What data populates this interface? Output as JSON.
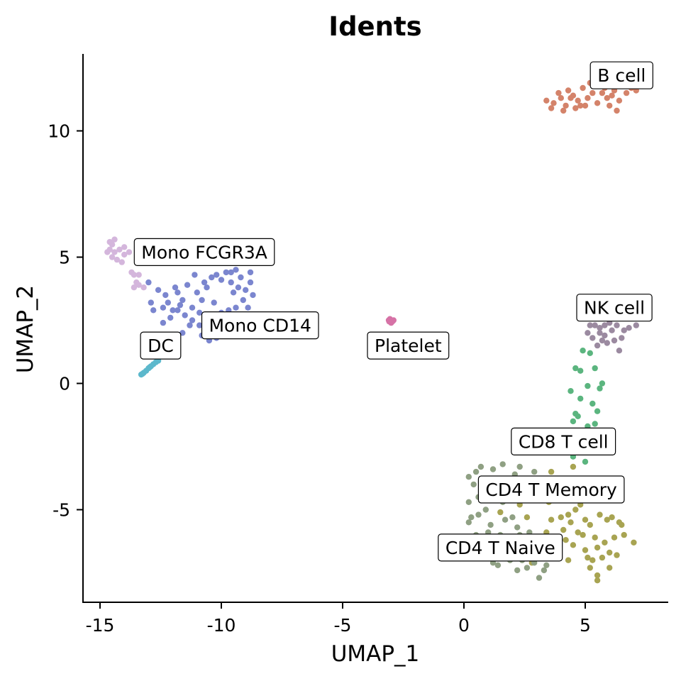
{
  "chart_data": {
    "type": "scatter",
    "title": "Idents",
    "xlabel": "UMAP_1",
    "ylabel": "UMAP_2",
    "xlim": [
      -15.5,
      8.5
    ],
    "ylim": [
      -8.6,
      13
    ],
    "xticks": [
      -15,
      -10,
      -5,
      0,
      5
    ],
    "xtick_labels": [
      "-15",
      "-10",
      "-5",
      "0",
      "5"
    ],
    "yticks": [
      -5,
      0,
      5,
      10
    ],
    "ytick_labels": [
      "-5",
      "0",
      "5",
      "10"
    ],
    "grid": false,
    "legend": "none",
    "series": [
      {
        "name": "B cell",
        "color": "#d4836a",
        "points": [
          [
            3.4,
            11.2
          ],
          [
            3.7,
            11.1
          ],
          [
            4.0,
            11.3
          ],
          [
            4.2,
            11.0
          ],
          [
            4.5,
            11.4
          ],
          [
            4.3,
            11.6
          ],
          [
            4.7,
            11.2
          ],
          [
            4.9,
            11.7
          ],
          [
            5.1,
            11.3
          ],
          [
            4.6,
            10.9
          ],
          [
            5.3,
            11.5
          ],
          [
            5.6,
            11.8
          ],
          [
            5.9,
            11.3
          ],
          [
            6.2,
            11.6
          ],
          [
            6.0,
            11.0
          ],
          [
            6.4,
            11.2
          ],
          [
            6.7,
            11.5
          ],
          [
            6.9,
            11.7
          ],
          [
            7.1,
            11.6
          ],
          [
            5.5,
            11.1
          ],
          [
            4.1,
            10.8
          ],
          [
            3.9,
            11.5
          ],
          [
            4.8,
            11.0
          ],
          [
            5.2,
            11.9
          ],
          [
            5.8,
            11.7
          ],
          [
            6.5,
            11.8
          ],
          [
            6.3,
            10.8
          ],
          [
            4.4,
            11.3
          ],
          [
            5.0,
            11.0
          ],
          [
            3.6,
            10.9
          ],
          [
            6.1,
            11.4
          ],
          [
            5.7,
            11.5
          ]
        ]
      },
      {
        "name": "NK cell",
        "color": "#9b8aa0",
        "points": [
          [
            5.1,
            2.0
          ],
          [
            5.3,
            1.8
          ],
          [
            5.6,
            2.2
          ],
          [
            5.8,
            1.9
          ],
          [
            6.1,
            2.1
          ],
          [
            6.3,
            2.3
          ],
          [
            6.5,
            1.8
          ],
          [
            6.8,
            2.2
          ],
          [
            7.1,
            2.3
          ],
          [
            5.9,
            1.6
          ],
          [
            5.4,
            2.3
          ],
          [
            6.0,
            2.4
          ],
          [
            5.7,
            1.7
          ],
          [
            6.2,
            1.7
          ],
          [
            5.5,
            1.5
          ],
          [
            6.4,
            1.3
          ],
          [
            5.2,
            2.3
          ],
          [
            6.6,
            2.1
          ],
          [
            5.8,
            2.3
          ],
          [
            5.6,
            2.0
          ]
        ]
      },
      {
        "name": "CD8 T cell",
        "color": "#5bb57f",
        "points": [
          [
            4.9,
            1.3
          ],
          [
            5.2,
            1.2
          ],
          [
            4.8,
            0.5
          ],
          [
            5.4,
            0.6
          ],
          [
            5.1,
            -0.1
          ],
          [
            5.6,
            -0.2
          ],
          [
            4.4,
            -0.3
          ],
          [
            4.8,
            -0.6
          ],
          [
            5.3,
            -0.8
          ],
          [
            4.6,
            -1.2
          ],
          [
            5.5,
            -1.1
          ],
          [
            4.7,
            -1.3
          ],
          [
            5.1,
            -1.7
          ],
          [
            5.4,
            -1.6
          ],
          [
            4.8,
            -1.9
          ],
          [
            5.3,
            -2.2
          ],
          [
            5.0,
            -2.5
          ],
          [
            4.5,
            -2.9
          ],
          [
            5.0,
            -3.1
          ],
          [
            4.6,
            0.6
          ],
          [
            5.7,
            0.0
          ],
          [
            4.5,
            -1.5
          ]
        ]
      },
      {
        "name": "CD4 T Memory",
        "color": "#a8a452",
        "points": [
          [
            3.6,
            -3.5
          ],
          [
            4.5,
            -3.3
          ],
          [
            5.0,
            -3.9
          ],
          [
            5.2,
            -4.5
          ],
          [
            4.8,
            -4.8
          ],
          [
            3.8,
            -4.4
          ],
          [
            4.3,
            -5.2
          ],
          [
            4.0,
            -5.3
          ],
          [
            4.6,
            -5.0
          ],
          [
            5.0,
            -5.4
          ],
          [
            5.2,
            -5.6
          ],
          [
            5.6,
            -5.2
          ],
          [
            5.9,
            -5.4
          ],
          [
            6.1,
            -5.3
          ],
          [
            6.4,
            -5.5
          ],
          [
            6.6,
            -6.0
          ],
          [
            5.4,
            -6.1
          ],
          [
            5.8,
            -6.3
          ],
          [
            6.2,
            -6.1
          ],
          [
            5.5,
            -6.5
          ],
          [
            5.1,
            -6.9
          ],
          [
            5.7,
            -6.9
          ],
          [
            6.0,
            -7.3
          ],
          [
            5.5,
            -7.6
          ],
          [
            5.5,
            -7.8
          ],
          [
            5.2,
            -7.3
          ],
          [
            4.4,
            -5.5
          ],
          [
            4.1,
            -5.8
          ],
          [
            3.6,
            -5.4
          ],
          [
            3.4,
            -5.9
          ],
          [
            3.2,
            -6.1
          ],
          [
            2.7,
            -6.2
          ],
          [
            2.6,
            -5.3
          ],
          [
            2.3,
            -4.8
          ],
          [
            1.5,
            -5.1
          ],
          [
            2.8,
            -7.1
          ],
          [
            3.1,
            -6.8
          ],
          [
            3.8,
            -6.6
          ],
          [
            4.3,
            -7.0
          ],
          [
            4.5,
            -6.4
          ],
          [
            4.9,
            -6.0
          ],
          [
            6.5,
            -5.6
          ],
          [
            7.0,
            -6.3
          ],
          [
            6.3,
            -6.8
          ],
          [
            5.3,
            -7.0
          ],
          [
            4.2,
            -6.2
          ],
          [
            3.5,
            -4.7
          ],
          [
            4.7,
            -5.9
          ],
          [
            5.0,
            -6.6
          ],
          [
            6.0,
            -6.7
          ]
        ]
      },
      {
        "name": "CD4 T Naive",
        "color": "#8fa083",
        "points": [
          [
            0.5,
            -3.5
          ],
          [
            0.7,
            -3.3
          ],
          [
            0.2,
            -3.7
          ],
          [
            1.2,
            -3.4
          ],
          [
            1.6,
            -3.2
          ],
          [
            2.3,
            -3.3
          ],
          [
            2.9,
            -3.5
          ],
          [
            0.4,
            -4.0
          ],
          [
            1.0,
            -4.3
          ],
          [
            1.9,
            -4.0
          ],
          [
            2.6,
            -4.4
          ],
          [
            0.6,
            -4.5
          ],
          [
            0.2,
            -4.7
          ],
          [
            0.9,
            -5.0
          ],
          [
            0.3,
            -5.3
          ],
          [
            1.1,
            -5.6
          ],
          [
            1.7,
            -5.4
          ],
          [
            2.2,
            -5.7
          ],
          [
            2.0,
            -5.3
          ],
          [
            0.2,
            -5.5
          ],
          [
            0.5,
            -6.0
          ],
          [
            0.9,
            -6.3
          ],
          [
            1.5,
            -6.0
          ],
          [
            1.3,
            -6.5
          ],
          [
            2.0,
            -6.2
          ],
          [
            2.5,
            -6.5
          ],
          [
            2.7,
            -6.8
          ],
          [
            1.8,
            -6.9
          ],
          [
            1.4,
            -7.2
          ],
          [
            2.2,
            -7.4
          ],
          [
            2.9,
            -7.1
          ],
          [
            3.1,
            -7.7
          ],
          [
            3.4,
            -7.2
          ],
          [
            3.7,
            -6.9
          ],
          [
            1.9,
            -7.0
          ],
          [
            2.4,
            -7.0
          ],
          [
            0.3,
            -6.6
          ],
          [
            0.8,
            -6.8
          ],
          [
            1.2,
            -7.1
          ],
          [
            2.6,
            -7.3
          ],
          [
            3.0,
            -6.3
          ],
          [
            1.6,
            -4.7
          ],
          [
            0.8,
            -3.8
          ],
          [
            1.4,
            -3.9
          ],
          [
            2.1,
            -3.6
          ],
          [
            1.1,
            -4.0
          ],
          [
            2.7,
            -5.9
          ],
          [
            1.0,
            -5.9
          ],
          [
            0.6,
            -5.2
          ],
          [
            2.3,
            -6.0
          ],
          [
            1.5,
            -6.6
          ],
          [
            3.2,
            -6.5
          ],
          [
            3.3,
            -7.4
          ]
        ]
      },
      {
        "name": "Platelet",
        "color": "#d672a6",
        "points": [
          [
            -3.1,
            2.5
          ],
          [
            -3.0,
            2.5
          ],
          [
            -2.95,
            2.45
          ],
          [
            -3.05,
            2.55
          ],
          [
            -2.9,
            2.5
          ],
          [
            -3.0,
            2.4
          ],
          [
            -3.08,
            2.45
          ]
        ]
      },
      {
        "name": "Mono FCGR3A",
        "color": "#d4b6dc",
        "points": [
          [
            -14.6,
            5.6
          ],
          [
            -14.5,
            5.5
          ],
          [
            -14.4,
            5.7
          ],
          [
            -14.6,
            5.3
          ],
          [
            -14.4,
            5.2
          ],
          [
            -14.7,
            5.2
          ],
          [
            -14.2,
            5.3
          ],
          [
            -14.0,
            5.1
          ],
          [
            -13.8,
            5.2
          ],
          [
            -14.3,
            4.9
          ],
          [
            -14.1,
            4.8
          ],
          [
            -14.5,
            5.0
          ],
          [
            -13.6,
            4.3
          ],
          [
            -13.4,
            4.3
          ],
          [
            -13.5,
            4.0
          ],
          [
            -13.2,
            3.8
          ],
          [
            -13.4,
            3.9
          ],
          [
            -13.7,
            4.4
          ],
          [
            -13.6,
            3.8
          ],
          [
            -14.0,
            5.4
          ]
        ]
      },
      {
        "name": "Mono CD14",
        "color": "#7b86cf",
        "points": [
          [
            -13.0,
            4.0
          ],
          [
            -12.6,
            3.7
          ],
          [
            -12.3,
            3.5
          ],
          [
            -12.2,
            3.2
          ],
          [
            -11.8,
            3.6
          ],
          [
            -11.6,
            3.3
          ],
          [
            -11.4,
            3.9
          ],
          [
            -11.2,
            3.0
          ],
          [
            -11.0,
            3.6
          ],
          [
            -10.8,
            3.3
          ],
          [
            -10.6,
            3.8
          ],
          [
            -10.4,
            4.2
          ],
          [
            -10.2,
            4.3
          ],
          [
            -10.0,
            4.1
          ],
          [
            -9.8,
            4.4
          ],
          [
            -9.6,
            4.0
          ],
          [
            -9.4,
            4.5
          ],
          [
            -9.2,
            4.2
          ],
          [
            -9.0,
            3.7
          ],
          [
            -8.8,
            4.4
          ],
          [
            -8.7,
            3.5
          ],
          [
            -9.1,
            3.3
          ],
          [
            -9.4,
            3.0
          ],
          [
            -9.7,
            2.9
          ],
          [
            -10.0,
            2.8
          ],
          [
            -10.3,
            2.6
          ],
          [
            -10.6,
            2.4
          ],
          [
            -10.9,
            2.3
          ],
          [
            -11.2,
            2.5
          ],
          [
            -11.5,
            2.7
          ],
          [
            -11.8,
            2.9
          ],
          [
            -12.1,
            2.6
          ],
          [
            -12.4,
            2.4
          ],
          [
            -12.8,
            2.9
          ],
          [
            -12.9,
            3.2
          ],
          [
            -11.6,
            2.0
          ],
          [
            -11.3,
            2.3
          ],
          [
            -10.8,
            1.9
          ],
          [
            -10.5,
            1.7
          ],
          [
            -10.2,
            1.8
          ],
          [
            -9.9,
            2.0
          ],
          [
            -10.9,
            2.8
          ],
          [
            -11.7,
            3.1
          ],
          [
            -12.0,
            2.9
          ],
          [
            -9.3,
            3.8
          ],
          [
            -8.9,
            3.0
          ],
          [
            -9.6,
            4.4
          ],
          [
            -10.7,
            4.0
          ],
          [
            -11.1,
            4.3
          ],
          [
            -11.9,
            3.8
          ],
          [
            -12.4,
            3.0
          ],
          [
            -10.3,
            3.2
          ],
          [
            -9.5,
            3.6
          ],
          [
            -8.8,
            4.0
          ]
        ]
      },
      {
        "name": "DC",
        "color": "#5cb8cc",
        "points": [
          [
            -13.3,
            0.35
          ],
          [
            -13.2,
            0.42
          ],
          [
            -13.1,
            0.5
          ],
          [
            -13.0,
            0.6
          ],
          [
            -12.9,
            0.68
          ],
          [
            -12.8,
            0.76
          ],
          [
            -12.7,
            0.84
          ],
          [
            -12.6,
            0.9
          ],
          [
            -13.25,
            0.38
          ],
          [
            -12.95,
            0.64
          ]
        ]
      }
    ],
    "labels": [
      {
        "text": "B cell",
        "x": 6.5,
        "y": 12.2
      },
      {
        "text": "NK cell",
        "x": 6.2,
        "y": 3.0
      },
      {
        "text": "CD8 T cell",
        "x": 4.1,
        "y": -2.3
      },
      {
        "text": "CD4 T Memory",
        "x": 3.6,
        "y": -4.2
      },
      {
        "text": "CD4 T Naive",
        "x": 1.5,
        "y": -6.5
      },
      {
        "text": "Platelet",
        "x": -2.3,
        "y": 1.5
      },
      {
        "text": "Mono FCGR3A",
        "x": -10.7,
        "y": 5.2
      },
      {
        "text": "Mono CD14",
        "x": -8.4,
        "y": 2.3
      },
      {
        "text": "DC",
        "x": -12.5,
        "y": 1.5
      }
    ]
  }
}
